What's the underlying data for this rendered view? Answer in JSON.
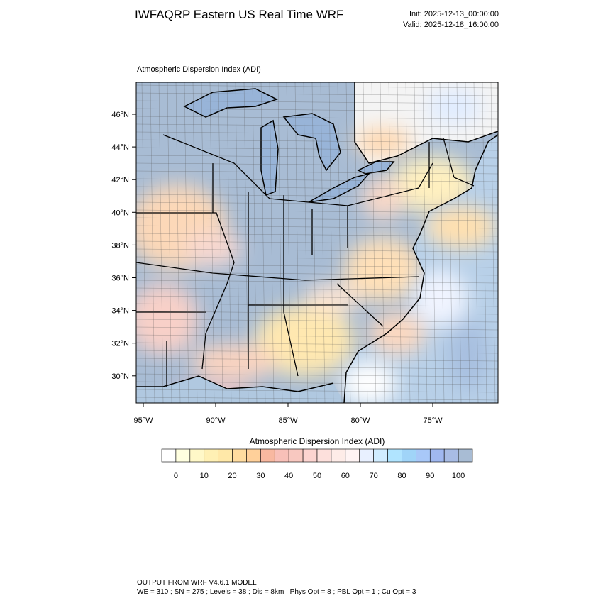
{
  "header": {
    "title": "IWFAQRP Eastern US Real Time WRF",
    "init": "Init: 2025-12-13_00:00:00",
    "valid": "Valid: 2025-12-18_16:00:00"
  },
  "map": {
    "subtitle": "Atmospheric Dispersion Index   (ADI)",
    "lat_labels": [
      "46°N",
      "44°N",
      "42°N",
      "40°N",
      "38°N",
      "36°N",
      "34°N",
      "32°N",
      "30°N"
    ],
    "lon_labels": [
      "95°W",
      "90°W",
      "85°W",
      "80°W",
      "75°W"
    ]
  },
  "colorbar": {
    "title": "Atmospheric Dispersion Index  (ADI)",
    "labels": [
      "0",
      "10",
      "20",
      "30",
      "40",
      "50",
      "60",
      "70",
      "80",
      "90",
      "100"
    ],
    "colors": [
      "#ffffff",
      "#ffffe0",
      "#fff8c8",
      "#fff0b4",
      "#ffe8a8",
      "#ffdca0",
      "#ffd09a",
      "#f8b8a0",
      "#f8c0b8",
      "#f8c8c0",
      "#fcd4d0",
      "#fde0dc",
      "#feece8",
      "#fff4f4",
      "#e8f0ff",
      "#d0ecff",
      "#b0e4ff",
      "#a0d4f8",
      "#a8c8f8",
      "#a0b8f0",
      "#a8bce4",
      "#a8bcd4"
    ]
  },
  "footer": {
    "line1": "OUTPUT FROM WRF V4.6.1 MODEL",
    "line2": "WE = 310 ; SN = 275 ; Levels = 38 ; Dis = 8km ; Phys Opt = 8 ; PBL Opt = 1 ; Cu Opt = 3"
  }
}
